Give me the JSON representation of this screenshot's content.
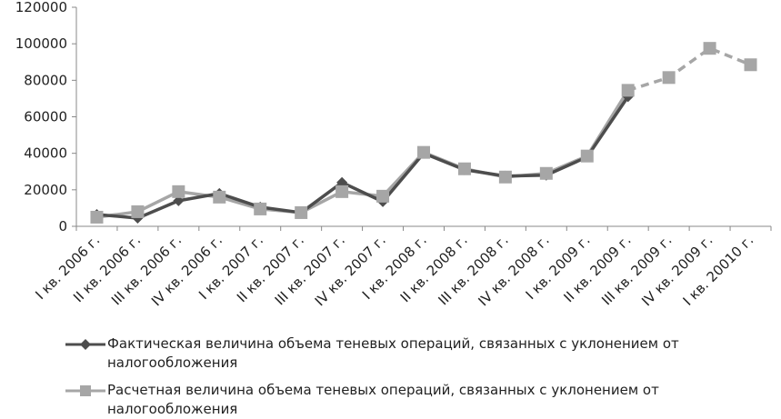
{
  "chart_data": {
    "type": "line",
    "categories": [
      "I кв. 2006 г.",
      "II кв. 2006 г.",
      "III кв. 2006 г.",
      "IV кв. 2006 г.",
      "I кв. 2007 г.",
      "II кв. 2007 г.",
      "III кв. 2007 г.",
      "IV кв. 2007 г.",
      "I кв. 2008 г.",
      "II кв. 2008 г.",
      "III кв. 2008 г.",
      "IV кв. 2008 г.",
      "I кв. 2009 г.",
      "II кв. 2009 г.",
      "III кв. 2009 г.",
      "IV кв. 2009 г.",
      "I кв. 20010 г."
    ],
    "ylim": [
      0,
      120000
    ],
    "yticks": [
      "0",
      "20000",
      "40000",
      "60000",
      "80000",
      "100000",
      "120000"
    ],
    "grid": false,
    "legend_position": "bottom",
    "series": [
      {
        "name": "Фактическая величина объема теневых операций, связанных с уклонением от налогообложения",
        "color": "#4d4d4d",
        "marker": "diamond",
        "values": [
          6500,
          4500,
          14000,
          18000,
          10500,
          7500,
          24000,
          13500,
          40000,
          31000,
          27500,
          28000,
          38000,
          71000,
          null,
          null,
          null
        ]
      },
      {
        "name": "Расчетная величина объема теневых операций, связанных с уклонением от налогообложения",
        "color": "#a6a6a6",
        "marker": "square",
        "values": [
          5000,
          8000,
          19000,
          16000,
          9500,
          7500,
          19000,
          16500,
          40500,
          31500,
          27000,
          29000,
          38500,
          74500,
          81500,
          97500,
          88500
        ],
        "dashed_from_index": 13
      }
    ]
  }
}
